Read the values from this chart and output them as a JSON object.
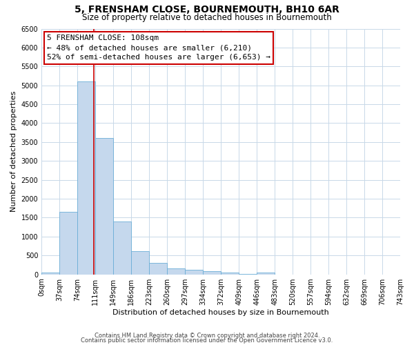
{
  "title": "5, FRENSHAM CLOSE, BOURNEMOUTH, BH10 6AR",
  "subtitle": "Size of property relative to detached houses in Bournemouth",
  "xlabel": "Distribution of detached houses by size in Bournemouth",
  "ylabel": "Number of detached properties",
  "bin_edges": [
    0,
    37,
    74,
    111,
    149,
    186,
    223,
    260,
    297,
    334,
    372,
    409,
    446,
    483,
    520,
    557,
    594,
    632,
    669,
    706,
    743
  ],
  "bar_heights": [
    50,
    1650,
    5100,
    3600,
    1400,
    620,
    300,
    150,
    120,
    80,
    40,
    10,
    50,
    0,
    0,
    0,
    0,
    0,
    0,
    0
  ],
  "bar_color": "#c5d8ed",
  "bar_edgecolor": "#6aaed6",
  "property_size": 108,
  "vline_color": "#cc0000",
  "ylim": [
    0,
    6500
  ],
  "yticks": [
    0,
    500,
    1000,
    1500,
    2000,
    2500,
    3000,
    3500,
    4000,
    4500,
    5000,
    5500,
    6000,
    6500
  ],
  "annotation_title": "5 FRENSHAM CLOSE: 108sqm",
  "annotation_line1": "← 48% of detached houses are smaller (6,210)",
  "annotation_line2": "52% of semi-detached houses are larger (6,653) →",
  "annotation_box_color": "#ffffff",
  "annotation_box_edgecolor": "#cc0000",
  "footer1": "Contains HM Land Registry data © Crown copyright and database right 2024.",
  "footer2": "Contains public sector information licensed under the Open Government Licence v3.0.",
  "background_color": "#ffffff",
  "grid_color": "#c8d8e8",
  "title_fontsize": 10,
  "subtitle_fontsize": 8.5,
  "axis_label_fontsize": 8,
  "tick_fontsize": 7,
  "annotation_fontsize": 8,
  "footer_fontsize": 6
}
